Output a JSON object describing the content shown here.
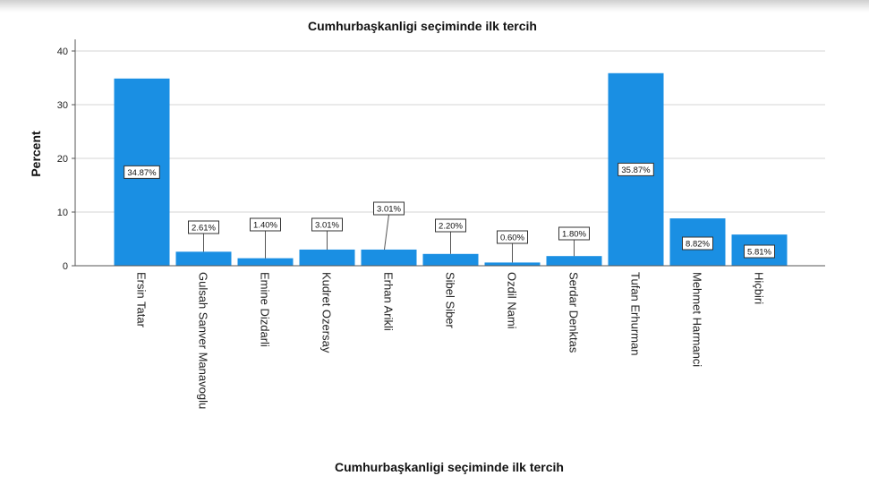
{
  "chart_data": {
    "type": "bar",
    "title": "Cumhurbaşkanligi seçiminde ilk tercih",
    "xlabel": "Cumhurbaşkanligi seçiminde ilk tercih",
    "ylabel": "Percent",
    "ylim": [
      0,
      40
    ],
    "yticks": [
      0,
      10,
      20,
      30,
      40
    ],
    "grid": true,
    "bar_color": "#1a8fe3",
    "categories": [
      "Ersin Tatar",
      "Gulsah Sanver Manavoglu",
      "Emine Dizdarli",
      "Kudret Ozersay",
      "Erhan Arikli",
      "Sibel Siber",
      "Ozdil Nami",
      "Serdar Denktas",
      "Tufan Erhurman",
      "Mehmet Harmanci",
      "Hiçbiri"
    ],
    "values": [
      34.87,
      2.61,
      1.4,
      3.01,
      3.01,
      2.2,
      0.6,
      1.8,
      35.87,
      8.82,
      5.81
    ],
    "labels": [
      "34.87%",
      "2.61%",
      "1.40%",
      "3.01%",
      "3.01%",
      "2.20%",
      "0.60%",
      "1.80%",
      "35.87%",
      "8.82%",
      "5.81%"
    ]
  }
}
